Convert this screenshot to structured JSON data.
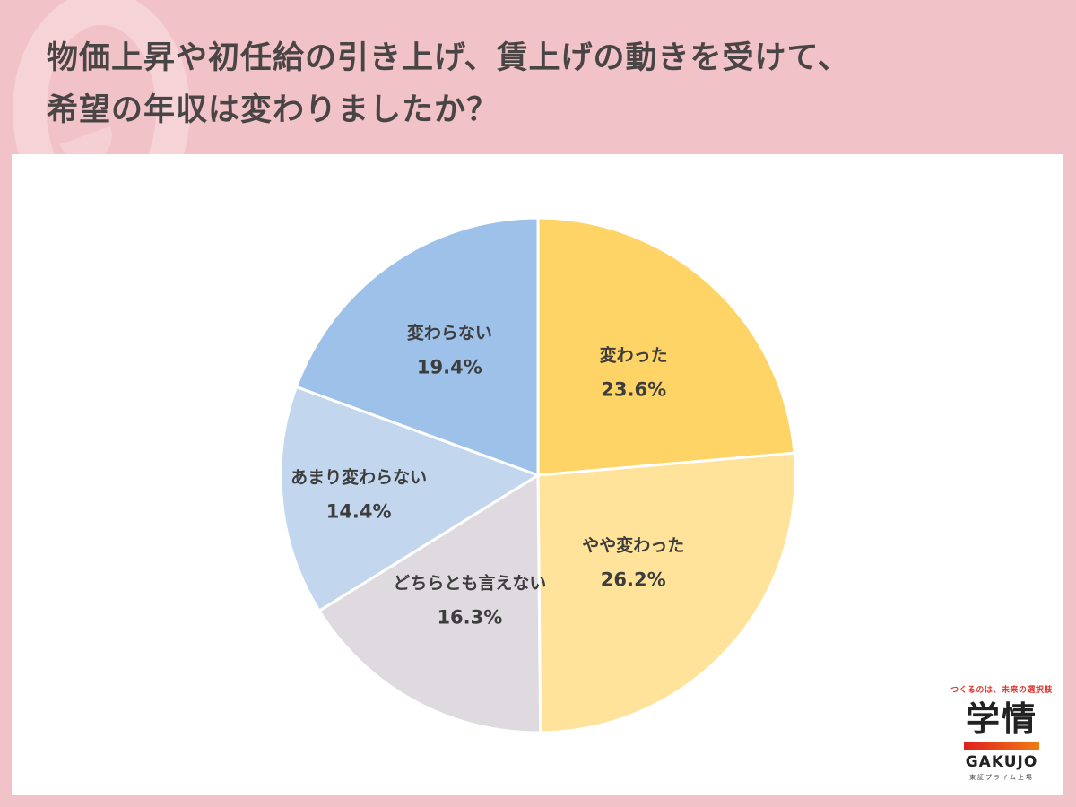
{
  "header": {
    "title_line1": "物価上昇や初任給の引き上げ、賃上げの動きを受けて、",
    "title_line2": "希望の年収は変わりましたか？"
  },
  "logo": {
    "tagline": "つくるのは、未来の選択肢",
    "brand_jp": "学情",
    "brand_en": "GAKUJO",
    "listing": "東証プライム上場",
    "gradient_colors": [
      "#e0201e",
      "#f07a14"
    ]
  },
  "colors": {
    "background": "#f1c2c8",
    "title_text": "#4a4545",
    "label_text": "#3d3d3d"
  },
  "chart_data": {
    "type": "pie",
    "title": "物価上昇や初任給の引き上げ、賃上げの動きを受けて、希望の年収は変わりましたか？",
    "start_angle": "12 o'clock",
    "direction": "clockwise",
    "legend": "none (labels inside slices)",
    "categories": [
      "変わった",
      "やや変わった",
      "どちらとも言えない",
      "あまり変わらない",
      "変わらない"
    ],
    "values": [
      23.6,
      26.2,
      16.3,
      14.4,
      19.4
    ],
    "labels": [
      "23.6%",
      "26.2%",
      "16.3%",
      "14.4%",
      "19.4%"
    ],
    "colors": [
      "#ffd466",
      "#ffe39b",
      "#dedadf",
      "#c2d7ee",
      "#9dc1e8"
    ],
    "unit": "%"
  }
}
